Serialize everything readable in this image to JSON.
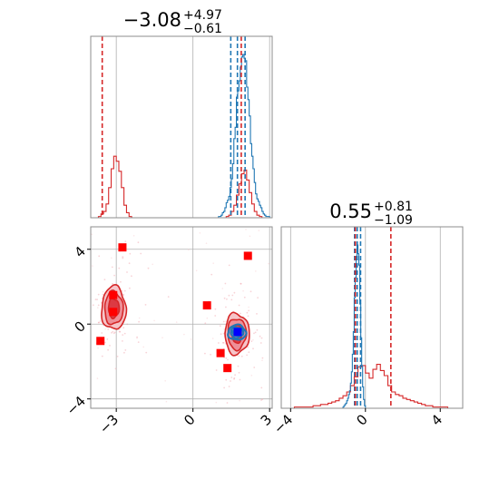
{
  "chart_data": [
    {
      "type": "corner",
      "grid": true,
      "colors": {
        "red": "#d62728",
        "blue": "#1f77b4",
        "marker_red": "#ff0000",
        "marker_blue": "#0000ff",
        "grid": "#b0b0b0",
        "frame": "#8c8c8c"
      },
      "parameters": [
        {
          "title_value": "−3.08",
          "title_plus": "+4.97",
          "title_minus": "−0.61",
          "range": [
            -4.0,
            3.1
          ],
          "ticks": [
            -3,
            0,
            3
          ],
          "tick_labels": [
            "−3",
            "0",
            "3"
          ]
        },
        {
          "title_value": "0.55",
          "title_plus": "+0.81",
          "title_minus": "−1.09",
          "range": [
            -4.5,
            5.2
          ],
          "ticks": [
            -4,
            0,
            4
          ],
          "tick_labels": [
            "−4",
            "0",
            "4"
          ]
        }
      ],
      "marginals": [
        {
          "param": 0,
          "series": [
            {
              "color": "red",
              "bins": [
                -4.0,
                -3.9,
                -3.8,
                -3.7,
                -3.6,
                -3.5,
                -3.4,
                -3.3,
                -3.2,
                -3.1,
                -3.0,
                -2.9,
                -2.8,
                -2.7,
                -2.6,
                -2.5,
                -2.4,
                -2.3,
                -2.2,
                -2.1,
                -2.0,
                -1.9,
                -1.8,
                -1.7,
                -1.6,
                -1.5,
                -1.4,
                -1.3,
                -1.2,
                -1.1,
                -1.0,
                -0.9,
                -0.8,
                -0.7,
                -0.6,
                -0.5,
                -0.4,
                -0.3,
                -0.2,
                -0.1,
                0.0,
                0.1,
                0.2,
                0.3,
                0.4,
                0.5,
                0.6,
                0.7,
                0.8,
                0.9,
                1.0,
                1.1,
                1.2,
                1.3,
                1.4,
                1.5,
                1.6,
                1.7,
                1.8,
                1.9,
                2.0,
                2.1,
                2.2,
                2.3,
                2.4,
                2.5,
                2.6,
                2.7,
                2.8,
                2.9,
                3.0,
                3.1
              ],
              "counts": [
                0,
                0,
                0,
                1,
                3,
                5,
                11,
                24,
                39,
                49,
                45,
                37,
                24,
                10,
                4,
                1,
                0,
                0,
                0,
                0,
                0,
                0,
                0,
                0,
                0,
                0,
                0,
                0,
                0,
                0,
                0,
                0,
                0,
                0,
                0,
                0,
                0,
                0,
                0,
                0,
                0,
                0,
                0,
                0,
                0,
                0,
                0,
                0,
                0,
                0,
                0,
                0,
                0,
                1,
                2,
                5,
                10,
                18,
                27,
                35,
                38,
                30,
                20,
                11,
                5,
                2,
                1,
                0,
                0,
                0,
                0
              ]
            },
            {
              "color": "blue",
              "bins": [
                1.0,
                1.05,
                1.1,
                1.15,
                1.2,
                1.25,
                1.3,
                1.35,
                1.4,
                1.45,
                1.5,
                1.55,
                1.6,
                1.65,
                1.7,
                1.75,
                1.8,
                1.85,
                1.9,
                1.95,
                2.0,
                2.05,
                2.1,
                2.15,
                2.2,
                2.25,
                2.3,
                2.35,
                2.4,
                2.45,
                2.5,
                2.55,
                2.6,
                2.65,
                2.7,
                2.75,
                2.8,
                2.85,
                2.9,
                2.95,
                3.0
              ],
              "counts": [
                1,
                1,
                2,
                4,
                5,
                8,
                12,
                14,
                17,
                24,
                31,
                43,
                63,
                72,
                96,
                101,
                109,
                120,
                128,
                130,
                127,
                125,
                104,
                94,
                81,
                59,
                49,
                39,
                28,
                19,
                15,
                13,
                10,
                8,
                5,
                3,
                2,
                1,
                1,
                1
              ]
            }
          ],
          "quantile_lines": [
            {
              "color": "blue",
              "values": [
                1.48,
                1.74,
                2.04
              ]
            },
            {
              "color": "red",
              "values": [
                -3.55,
                1.89
              ]
            }
          ]
        },
        {
          "param": 1,
          "series": [
            {
              "color": "red",
              "bins": [
                -4.0,
                -3.8,
                -3.6,
                -3.4,
                -3.2,
                -3.0,
                -2.8,
                -2.6,
                -2.4,
                -2.2,
                -2.0,
                -1.8,
                -1.6,
                -1.4,
                -1.2,
                -1.0,
                -0.8,
                -0.6,
                -0.4,
                -0.2,
                0.0,
                0.2,
                0.4,
                0.6,
                0.8,
                1.0,
                1.2,
                1.4,
                1.6,
                1.8,
                2.0,
                2.2,
                2.4,
                2.6,
                2.8,
                3.0,
                3.2,
                3.4,
                3.6,
                3.8,
                4.0,
                4.2,
                4.4
              ],
              "counts": [
                0,
                1,
                1,
                1,
                1,
                1,
                2,
                2,
                3,
                3,
                4,
                5,
                6,
                8,
                10,
                13,
                18,
                25,
                33,
                34,
                28,
                24,
                31,
                35,
                30,
                26,
                18,
                13,
                11,
                10,
                8,
                7,
                6,
                5,
                4,
                3,
                2,
                2,
                1,
                1,
                1,
                1
              ]
            },
            {
              "color": "blue",
              "bins": [
                -1.2,
                -1.15,
                -1.1,
                -1.05,
                -1.0,
                -0.95,
                -0.9,
                -0.85,
                -0.8,
                -0.75,
                -0.7,
                -0.65,
                -0.6,
                -0.55,
                -0.5,
                -0.45,
                -0.4,
                -0.35,
                -0.3,
                -0.25,
                -0.2,
                -0.15,
                -0.1,
                -0.05,
                0.0
              ],
              "counts": [
                1,
                2,
                3,
                4,
                6,
                8,
                11,
                14,
                20,
                29,
                43,
                61,
                88,
                104,
                121,
                130,
                123,
                114,
                83,
                56,
                34,
                17,
                7,
                2
              ]
            }
          ],
          "quantile_lines": [
            {
              "color": "blue",
              "values": [
                -0.58,
                -0.44,
                -0.26
              ]
            },
            {
              "color": "red",
              "values": [
                -0.54,
                1.36
              ]
            }
          ]
        }
      ],
      "joint": {
        "red_markers": [
          [
            -3.62,
            -0.9
          ],
          [
            -3.12,
            1.55
          ],
          [
            -3.12,
            0.65
          ],
          [
            -2.76,
            4.1
          ],
          [
            0.55,
            1.0
          ],
          [
            1.08,
            -1.55
          ],
          [
            1.35,
            -2.35
          ],
          [
            2.15,
            3.65
          ]
        ],
        "blue_marker": [
          1.75,
          -0.42
        ],
        "red_modes": [
          {
            "center": [
              -3.1,
              0.85
            ],
            "sx": 0.5,
            "sy": 1.22,
            "levels": [
              0.95,
              0.72,
              0.42
            ]
          },
          {
            "center": [
              1.72,
              -0.52
            ],
            "sx": 0.5,
            "sy": 1.15,
            "levels": [
              0.95,
              0.72,
              0.42
            ]
          }
        ],
        "blue_mode": {
          "center": [
            1.72,
            -0.45
          ],
          "sx": 0.35,
          "sy": 0.4,
          "levels": [
            1.0,
            0.7,
            0.42
          ]
        }
      }
    }
  ]
}
